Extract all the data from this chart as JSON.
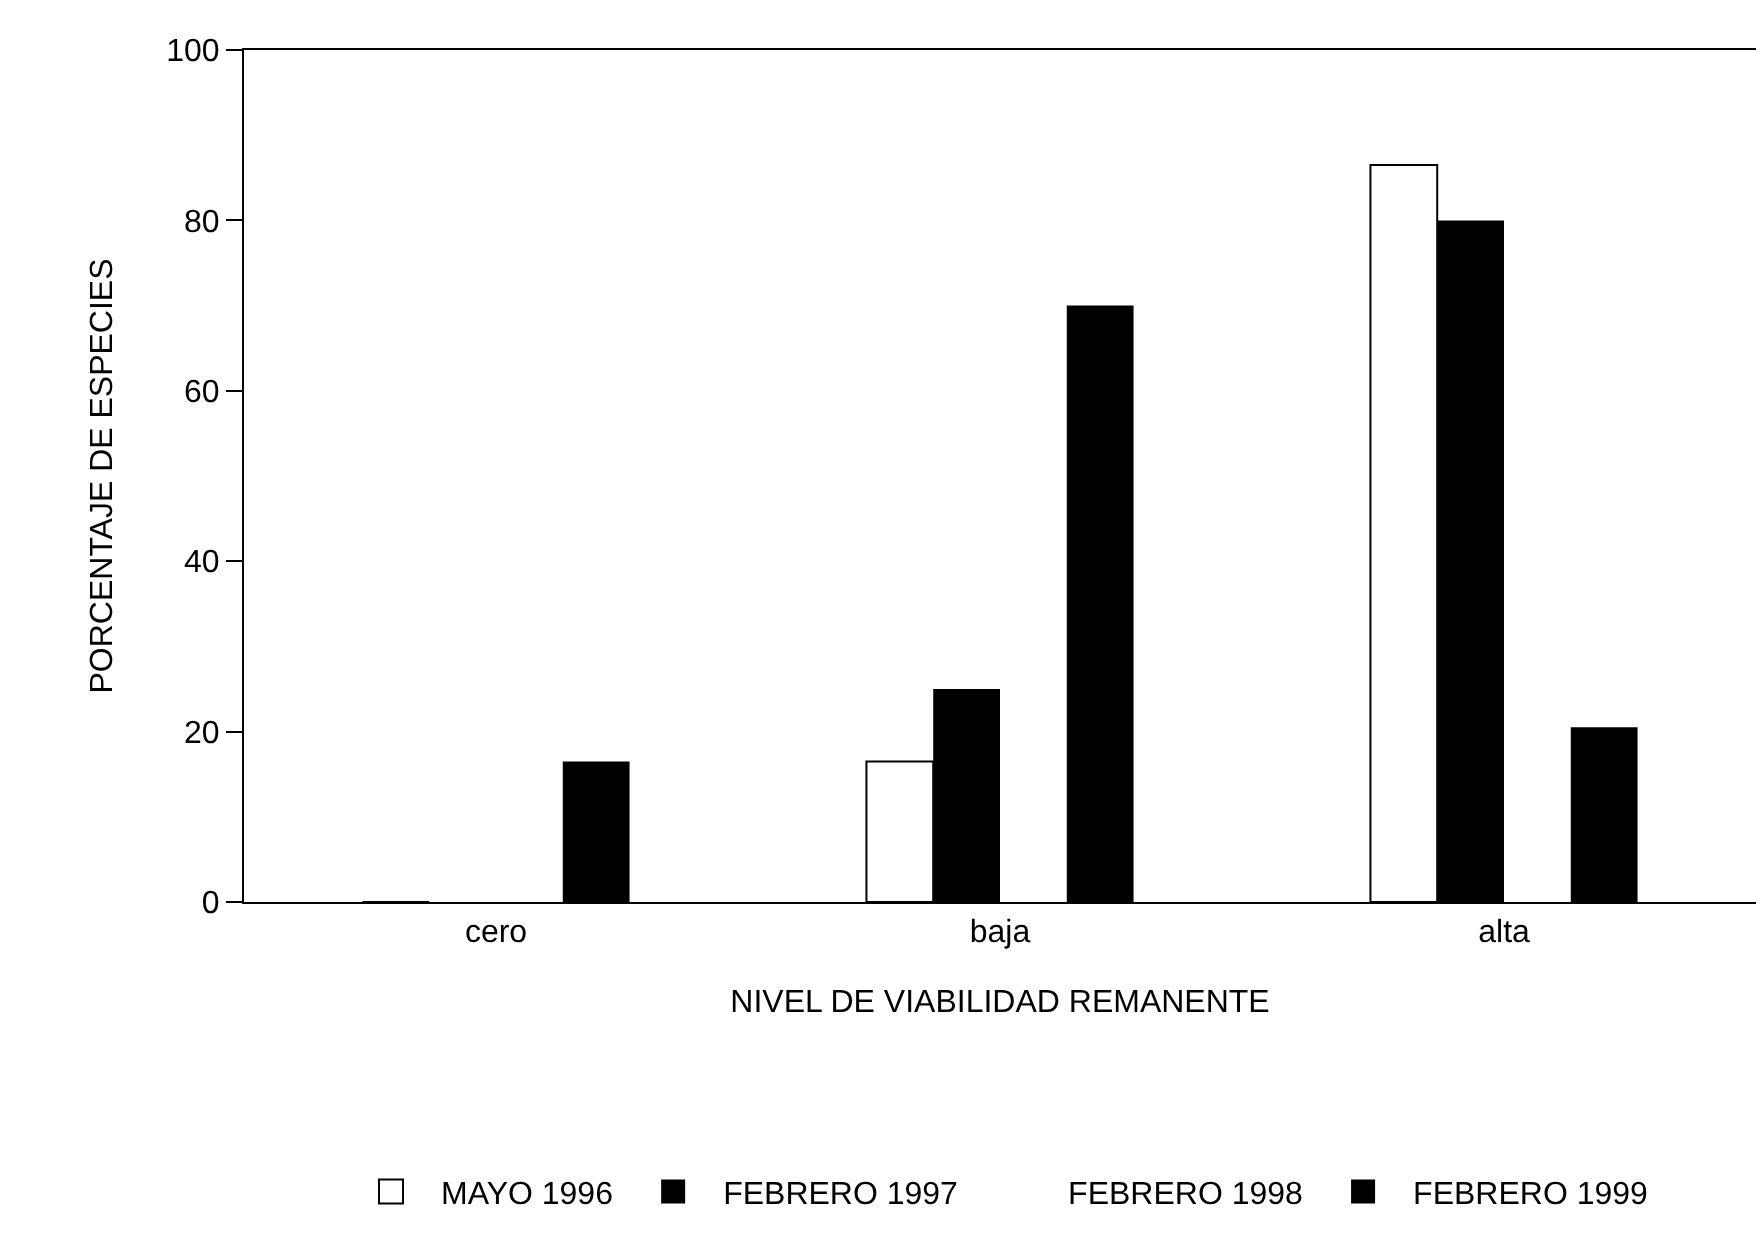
{
  "chart_data": {
    "type": "bar",
    "xlabel": "NIVEL DE VIABILIDAD REMANENTE",
    "ylabel": "PORCENTAJE DE ESPECIES",
    "categories": [
      "cero",
      "baja",
      "alta"
    ],
    "series": [
      {
        "name": "MAYO 1996",
        "color": "#ffffff",
        "values": [
          0,
          16.5,
          86.5
        ]
      },
      {
        "name": "FEBRERO 1997",
        "color": "#000000",
        "values": [
          0,
          25,
          80
        ]
      },
      {
        "name": "FEBRERO 1998",
        "values": [
          null,
          null,
          null
        ]
      },
      {
        "name": "FEBRERO 1999",
        "color": "#000000",
        "values": [
          16.5,
          70,
          20.5
        ]
      }
    ],
    "ylim": [
      0,
      100
    ],
    "yticks": [
      0,
      20,
      40,
      60,
      80,
      100
    ],
    "grid": false,
    "legend": "bottom"
  }
}
